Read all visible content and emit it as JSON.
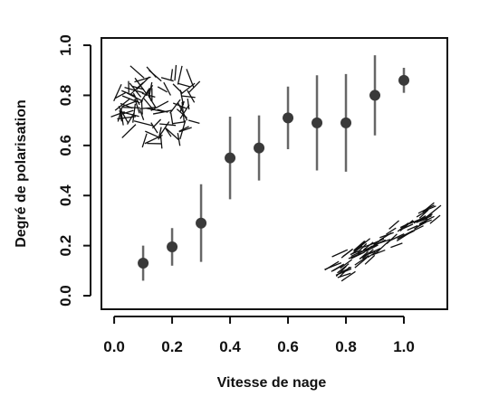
{
  "chart_data": {
    "type": "scatter",
    "x_label": "Vitesse de nage",
    "y_label": "Degré de polarisation",
    "series": [
      {
        "x": [
          0.1,
          0.2,
          0.3,
          0.4,
          0.5,
          0.6,
          0.7,
          0.8,
          0.9,
          1.0
        ],
        "values": [
          0.13,
          0.195,
          0.29,
          0.55,
          0.59,
          0.71,
          0.69,
          0.69,
          0.8,
          0.86
        ],
        "errors": [
          0.07,
          0.075,
          0.155,
          0.165,
          0.13,
          0.125,
          0.19,
          0.195,
          0.16,
          0.05
        ],
        "color": "#3a3a3a",
        "error_color": "#666666"
      }
    ],
    "xlim": [
      -0.044,
      1.15
    ],
    "ylim": [
      -0.054,
      1.029
    ],
    "xticks": [
      {
        "value": 0,
        "label": "0.0"
      },
      0.2,
      0.4,
      0.6,
      0.8,
      {
        "value": 1,
        "label": "1.0"
      }
    ],
    "yticks": [
      {
        "value": 0,
        "label": "0.0"
      },
      0.2,
      0.4,
      0.6,
      0.8,
      {
        "value": 1,
        "label": "1.0"
      }
    ]
  }
}
